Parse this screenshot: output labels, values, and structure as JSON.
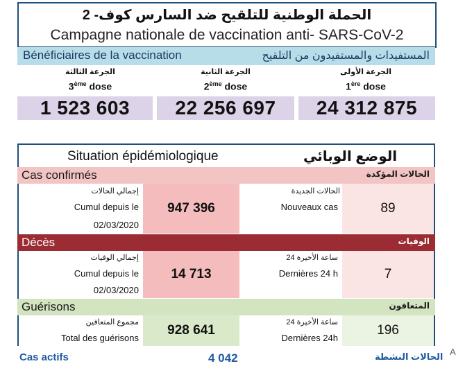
{
  "campaign": {
    "title_ar": "الحملة الوطنية للتلقيح ضد السارس كوف- 2",
    "title_fr": "Campagne nationale de vaccination anti- SARS-CoV-2"
  },
  "beneficiaries": {
    "label_fr": "Bénéficiaires de la vaccination",
    "label_ar": "المستفيدات والمستفيدون من التلقيح",
    "doses": [
      {
        "label_ar": "الجرعة الثالثة",
        "ordinal": "3",
        "ordinal_sup": "ème",
        "word": "dose",
        "value": "1 523 603"
      },
      {
        "label_ar": "الجرعة الثانية",
        "ordinal": "2",
        "ordinal_sup": "ème",
        "word": "dose",
        "value": "22 256 697"
      },
      {
        "label_ar": "الجرعة الأولى",
        "ordinal": "1",
        "ordinal_sup": "ère",
        "word": "dose",
        "value": "24 312 875"
      }
    ]
  },
  "epidemiology": {
    "title_fr": "Situation épidémiologique",
    "title_ar": "الوضع الوبائي",
    "confirmed": {
      "label_fr": "Cas confirmés",
      "label_ar": "الحالات المؤكدة",
      "total_label_ar": "إجمالي الحالات",
      "total_label_fr": "Cumul depuis le",
      "total_date": "02/03/2020",
      "total_value": "947 396",
      "new_label_ar": "الحالات الجديدة",
      "new_label_fr": "Nouveaux cas",
      "new_value": "89"
    },
    "deaths": {
      "label_fr": "Décès",
      "label_ar": "الوفيات",
      "total_label_ar": "إجمالي الوفيات",
      "total_label_fr": "Cumul depuis le",
      "total_date": "02/03/2020",
      "total_value": "14 713",
      "new_label_ar": "24 ساعة الأخيرة",
      "new_label_fr": "Dernières 24 h",
      "new_value": "7"
    },
    "recovered": {
      "label_fr": "Guérisons",
      "label_ar": "المتعافون",
      "total_label_ar": "مجموع المتعافين",
      "total_label_fr": "Total des guérisons",
      "total_value": "928 641",
      "new_label_ar": "24 ساعة الأخيرة",
      "new_label_fr": "Dernières 24h",
      "new_value": "196"
    },
    "active": {
      "label_fr": "Cas actifs",
      "label_ar": "الحالات النشطة",
      "value": "4 042"
    }
  },
  "corner_mark": "A",
  "colors": {
    "confirmed_band": "#f2c4c4",
    "confirmed_box": "#f4bcbc",
    "confirmed_light": "#fbe4e4",
    "deaths_band": "#9b2c33",
    "deaths_box": "#f4bcbc",
    "deaths_light": "#fbe4e4",
    "recovered_band": "#d3e4c0",
    "recovered_box": "#dbe9cb",
    "recovered_light": "#ebf3e2",
    "active_text": "#1f5aa0"
  }
}
